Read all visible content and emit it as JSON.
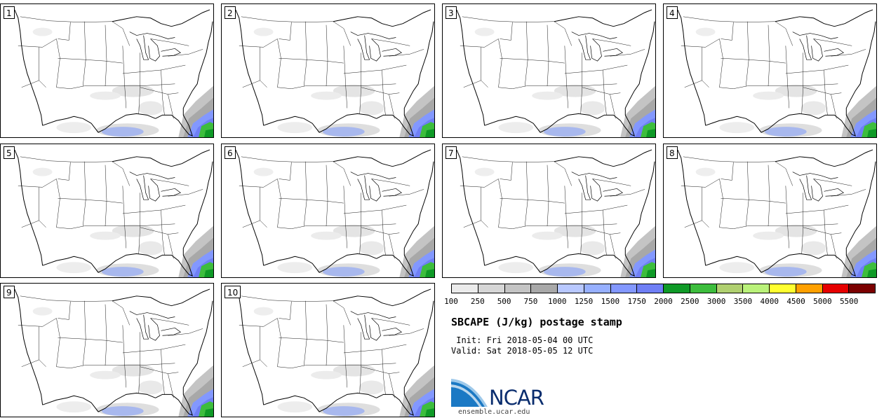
{
  "panels": [
    {
      "label": "1"
    },
    {
      "label": "2"
    },
    {
      "label": "3"
    },
    {
      "label": "4"
    },
    {
      "label": "5"
    },
    {
      "label": "6"
    },
    {
      "label": "7"
    },
    {
      "label": "8"
    },
    {
      "label": "9"
    },
    {
      "label": "10"
    }
  ],
  "legend": {
    "colors": [
      "#ebebeb",
      "#d6d6d6",
      "#c4c4c4",
      "#a8a8a8",
      "#b8c8ff",
      "#97b0ff",
      "#8398ff",
      "#6f7ff5",
      "#0f9a27",
      "#3dbd3d",
      "#b0d070",
      "#baf27a",
      "#ffff30",
      "#ffa000",
      "#e60000",
      "#7b0000"
    ],
    "ticks": [
      "100",
      "250",
      "500",
      "750",
      "1000",
      "1250",
      "1500",
      "1750",
      "2000",
      "2500",
      "3000",
      "3500",
      "4000",
      "4500",
      "5000",
      "5500"
    ]
  },
  "title": "SBCAPE (J/kg) postage stamp",
  "init": " Init: Fri 2018-05-04 00 UTC",
  "valid": "Valid: Sat 2018-05-05 12 UTC",
  "logo": {
    "name": "NCAR",
    "url_text": "ensemble.ucar.edu"
  }
}
